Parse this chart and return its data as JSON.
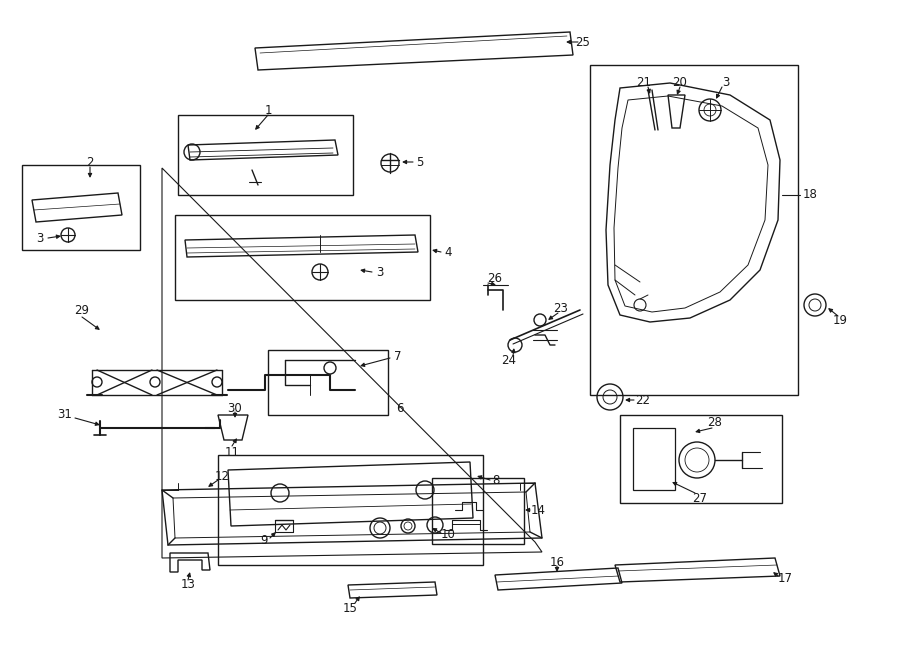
{
  "bg_color": "#ffffff",
  "line_color": "#1a1a1a",
  "fig_width": 9.0,
  "fig_height": 6.61,
  "dpi": 100,
  "lw": 1.0,
  "fs": 8.5
}
